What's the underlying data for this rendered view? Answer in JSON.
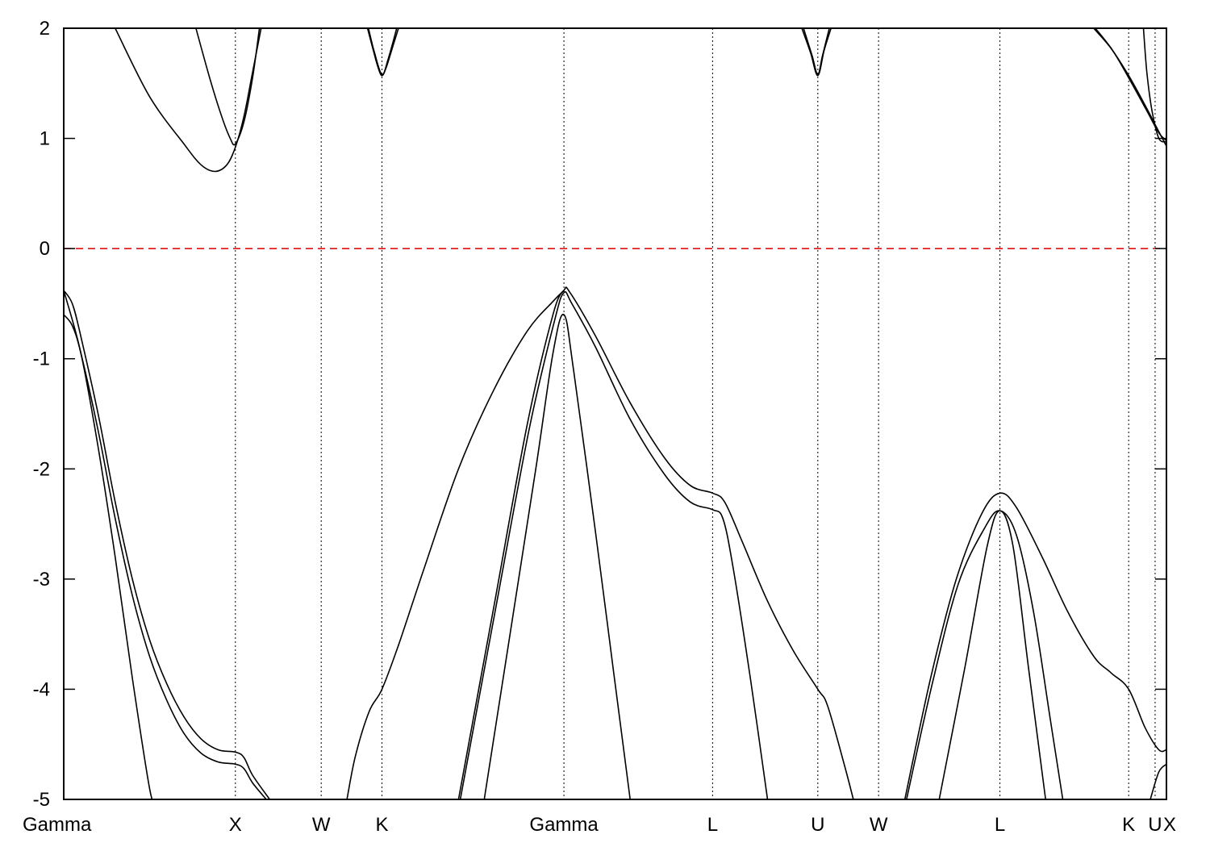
{
  "chart_data": {
    "type": "line",
    "title": "",
    "xlabel": "",
    "ylabel": "",
    "ylim": [
      -5,
      2
    ],
    "yticks": [
      -5,
      -4,
      -3,
      -2,
      -1,
      0,
      1,
      2
    ],
    "kpoints": [
      {
        "label": "Gamma",
        "x": 0.0
      },
      {
        "label": "X",
        "x": 1.0
      },
      {
        "label": "W",
        "x": 1.5
      },
      {
        "label": "K",
        "x": 1.854
      },
      {
        "label": "Gamma",
        "x": 2.914
      },
      {
        "label": "L",
        "x": 3.78
      },
      {
        "label": "U",
        "x": 4.393
      },
      {
        "label": "W",
        "x": 4.747
      },
      {
        "label": "L",
        "x": 5.454
      },
      {
        "label": "K",
        "x": 6.204
      },
      {
        "label": "U",
        "x": 6.358
      },
      {
        "label": "X",
        "x": 6.424
      }
    ],
    "xlim": [
      0,
      6.424
    ],
    "fermi_level": 0,
    "fermi_color": "#e01010",
    "line_color": "#000000",
    "grid": false,
    "legend": "none",
    "series": [
      {
        "points": [
          [
            0,
            -0.38
          ],
          [
            0.05,
            -0.5
          ],
          [
            0.1,
            -0.8
          ],
          [
            0.2,
            -1.5
          ],
          [
            0.3,
            -2.3
          ],
          [
            0.4,
            -3.0
          ],
          [
            0.5,
            -3.55
          ],
          [
            0.6,
            -3.95
          ],
          [
            0.7,
            -4.25
          ],
          [
            0.8,
            -4.45
          ],
          [
            0.9,
            -4.55
          ],
          [
            1.0,
            -4.57
          ],
          [
            1.05,
            -4.62
          ],
          [
            1.1,
            -4.78
          ],
          [
            1.2,
            -5.0
          ]
        ]
      },
      {
        "points": [
          [
            0,
            -0.6
          ],
          [
            0.05,
            -0.7
          ],
          [
            0.1,
            -0.95
          ],
          [
            0.2,
            -1.65
          ],
          [
            0.3,
            -2.45
          ],
          [
            0.4,
            -3.15
          ],
          [
            0.5,
            -3.7
          ],
          [
            0.6,
            -4.1
          ],
          [
            0.7,
            -4.4
          ],
          [
            0.8,
            -4.58
          ],
          [
            0.9,
            -4.66
          ],
          [
            1.0,
            -4.68
          ],
          [
            1.05,
            -4.72
          ],
          [
            1.1,
            -4.85
          ],
          [
            1.18,
            -5.0
          ]
        ]
      },
      {
        "points": [
          [
            0,
            -0.38
          ],
          [
            0.1,
            -0.95
          ],
          [
            0.2,
            -1.8
          ],
          [
            0.3,
            -2.8
          ],
          [
            0.4,
            -3.9
          ],
          [
            0.5,
            -4.9
          ],
          [
            0.53,
            -5.0
          ]
        ]
      },
      {
        "points": [
          [
            0.3,
            2.0
          ],
          [
            0.5,
            1.38
          ],
          [
            0.7,
            0.95
          ],
          [
            0.8,
            0.76
          ],
          [
            0.88,
            0.7
          ],
          [
            0.95,
            0.76
          ],
          [
            1.0,
            0.92
          ],
          [
            1.05,
            1.2
          ],
          [
            1.1,
            1.6
          ],
          [
            1.15,
            2.0
          ]
        ]
      },
      {
        "points": [
          [
            0.77,
            2.0
          ],
          [
            0.85,
            1.55
          ],
          [
            0.92,
            1.2
          ],
          [
            0.97,
            1.0
          ],
          [
            1.0,
            0.95
          ],
          [
            1.05,
            1.15
          ],
          [
            1.1,
            1.55
          ],
          [
            1.14,
            2.0
          ]
        ]
      },
      {
        "points": [
          [
            1.65,
            -5.0
          ],
          [
            1.7,
            -4.6
          ],
          [
            1.78,
            -4.2
          ],
          [
            1.854,
            -4.0
          ],
          [
            1.95,
            -3.6
          ],
          [
            2.1,
            -2.9
          ],
          [
            2.3,
            -2.0
          ],
          [
            2.5,
            -1.3
          ],
          [
            2.7,
            -0.75
          ],
          [
            2.85,
            -0.48
          ],
          [
            2.914,
            -0.38
          ]
        ]
      },
      {
        "points": [
          [
            2.3,
            -5.0
          ],
          [
            2.5,
            -3.3
          ],
          [
            2.7,
            -1.6
          ],
          [
            2.85,
            -0.6
          ],
          [
            2.914,
            -0.38
          ],
          [
            2.95,
            -0.4
          ],
          [
            3.1,
            -0.8
          ],
          [
            3.3,
            -1.4
          ],
          [
            3.5,
            -1.9
          ],
          [
            3.65,
            -2.15
          ],
          [
            3.78,
            -2.22
          ],
          [
            3.85,
            -2.3
          ],
          [
            3.95,
            -2.65
          ],
          [
            4.1,
            -3.2
          ],
          [
            4.25,
            -3.65
          ],
          [
            4.393,
            -4.0
          ],
          [
            4.45,
            -4.15
          ],
          [
            4.55,
            -4.7
          ],
          [
            4.6,
            -5.0
          ]
        ]
      },
      {
        "points": [
          [
            2.31,
            -5.0
          ],
          [
            2.51,
            -3.32
          ],
          [
            2.71,
            -1.65
          ],
          [
            2.86,
            -0.65
          ],
          [
            2.914,
            -0.4
          ],
          [
            2.96,
            -0.5
          ],
          [
            3.1,
            -0.9
          ],
          [
            3.3,
            -1.55
          ],
          [
            3.5,
            -2.05
          ],
          [
            3.65,
            -2.3
          ],
          [
            3.78,
            -2.37
          ],
          [
            3.84,
            -2.45
          ],
          [
            3.9,
            -2.9
          ],
          [
            4.0,
            -3.9
          ],
          [
            4.1,
            -5.0
          ]
        ]
      },
      {
        "points": [
          [
            2.45,
            -5.0
          ],
          [
            2.6,
            -3.5
          ],
          [
            2.75,
            -2.0
          ],
          [
            2.85,
            -0.95
          ],
          [
            2.914,
            -0.6
          ],
          [
            2.97,
            -1.1
          ],
          [
            3.1,
            -2.6
          ],
          [
            3.2,
            -3.8
          ],
          [
            3.3,
            -5.0
          ]
        ]
      },
      {
        "points": [
          [
            1.77,
            2.0
          ],
          [
            1.8,
            1.82
          ],
          [
            1.83,
            1.65
          ],
          [
            1.854,
            1.57
          ],
          [
            1.88,
            1.65
          ],
          [
            1.92,
            1.85
          ],
          [
            1.95,
            2.0
          ]
        ]
      },
      {
        "points": [
          [
            1.775,
            2.0
          ],
          [
            1.81,
            1.78
          ],
          [
            1.854,
            1.58
          ],
          [
            1.89,
            1.72
          ],
          [
            1.94,
            2.0
          ]
        ]
      },
      {
        "points": [
          [
            4.3,
            2.0
          ],
          [
            4.35,
            1.78
          ],
          [
            4.393,
            1.57
          ],
          [
            4.43,
            1.8
          ],
          [
            4.47,
            2.0
          ]
        ]
      },
      {
        "points": [
          [
            4.31,
            2.0
          ],
          [
            4.36,
            1.75
          ],
          [
            4.393,
            1.58
          ],
          [
            4.42,
            1.75
          ],
          [
            4.46,
            2.0
          ]
        ]
      },
      {
        "points": [
          [
            4.9,
            -5.0
          ],
          [
            5.05,
            -3.9
          ],
          [
            5.2,
            -3.0
          ],
          [
            5.35,
            -2.4
          ],
          [
            5.454,
            -2.22
          ],
          [
            5.55,
            -2.35
          ],
          [
            5.7,
            -2.8
          ],
          [
            5.85,
            -3.3
          ],
          [
            6.0,
            -3.7
          ],
          [
            6.1,
            -3.85
          ],
          [
            6.204,
            -4.0
          ],
          [
            6.3,
            -4.35
          ],
          [
            6.38,
            -4.55
          ],
          [
            6.424,
            -4.55
          ]
        ]
      },
      {
        "points": [
          [
            4.91,
            -5.0
          ],
          [
            5.06,
            -3.95
          ],
          [
            5.21,
            -3.05
          ],
          [
            5.36,
            -2.55
          ],
          [
            5.454,
            -2.38
          ],
          [
            5.55,
            -2.6
          ],
          [
            5.65,
            -3.3
          ],
          [
            5.75,
            -4.3
          ],
          [
            5.82,
            -5.0
          ]
        ]
      },
      {
        "points": [
          [
            5.1,
            -5.0
          ],
          [
            5.25,
            -3.8
          ],
          [
            5.38,
            -2.7
          ],
          [
            5.454,
            -2.38
          ],
          [
            5.53,
            -2.7
          ],
          [
            5.62,
            -3.8
          ],
          [
            5.72,
            -5.0
          ]
        ]
      },
      {
        "points": [
          [
            6.0,
            2.0
          ],
          [
            6.1,
            1.82
          ],
          [
            6.204,
            1.57
          ],
          [
            6.3,
            1.3
          ],
          [
            6.36,
            1.12
          ],
          [
            6.424,
            0.93
          ]
        ]
      },
      {
        "points": [
          [
            6.01,
            2.0
          ],
          [
            6.11,
            1.8
          ],
          [
            6.204,
            1.55
          ],
          [
            6.31,
            1.25
          ],
          [
            6.38,
            1.05
          ],
          [
            6.424,
            0.98
          ]
        ]
      },
      {
        "points": [
          [
            6.29,
            2.0
          ],
          [
            6.31,
            1.6
          ],
          [
            6.34,
            1.25
          ],
          [
            6.38,
            1.0
          ],
          [
            6.424,
            0.97
          ]
        ]
      },
      {
        "points": [
          [
            6.33,
            -5.0
          ],
          [
            6.38,
            -4.75
          ],
          [
            6.424,
            -4.68
          ]
        ]
      }
    ]
  }
}
